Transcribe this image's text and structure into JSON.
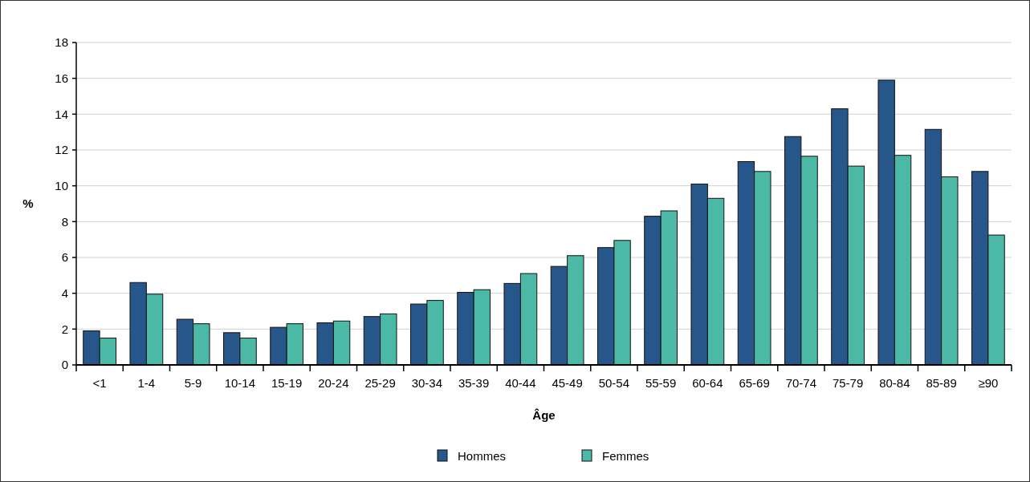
{
  "chart_data": {
    "type": "bar",
    "xlabel": "Âge",
    "ylabel": "%",
    "categories": [
      "<1",
      "1-4",
      "5-9",
      "10-14",
      "15-19",
      "20-24",
      "25-29",
      "30-34",
      "35-39",
      "40-44",
      "45-49",
      "50-54",
      "55-59",
      "60-64",
      "65-69",
      "70-74",
      "75-79",
      "80-84",
      "85-89",
      "≥90"
    ],
    "series": [
      {
        "name": "Hommes",
        "color": "#27568b",
        "values": [
          1.9,
          4.6,
          2.55,
          1.8,
          2.1,
          2.35,
          2.7,
          3.4,
          4.05,
          4.55,
          5.5,
          6.55,
          8.3,
          10.1,
          11.35,
          12.75,
          14.3,
          15.9,
          13.15,
          10.8
        ]
      },
      {
        "name": "Femmes",
        "color": "#4cb8a6",
        "values": [
          1.5,
          3.95,
          2.3,
          1.5,
          2.3,
          2.45,
          2.85,
          3.6,
          4.2,
          5.1,
          6.1,
          6.95,
          8.6,
          9.3,
          10.8,
          11.65,
          11.1,
          11.7,
          10.5,
          7.25
        ]
      }
    ],
    "ylim": [
      0,
      18
    ],
    "yticks": [
      0,
      2,
      4,
      6,
      8,
      10,
      12,
      14,
      16,
      18
    ],
    "grid": "y",
    "legend": "bottom"
  }
}
